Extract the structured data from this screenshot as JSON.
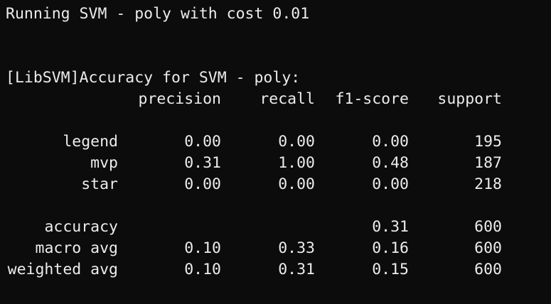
{
  "terminal": {
    "line1": "Running SVM - poly with cost 0.01",
    "line2": "[LibSVM]Accuracy for SVM - poly:",
    "headers": [
      "precision",
      "recall",
      "f1-score",
      "support"
    ],
    "class_rows": [
      {
        "label": "legend",
        "precision": "0.00",
        "recall": "0.00",
        "f1": "0.00",
        "support": "195"
      },
      {
        "label": "mvp",
        "precision": "0.31",
        "recall": "1.00",
        "f1": "0.48",
        "support": "187"
      },
      {
        "label": "star",
        "precision": "0.00",
        "recall": "0.00",
        "f1": "0.00",
        "support": "218"
      }
    ],
    "summary_rows": [
      {
        "label": "accuracy",
        "precision": "",
        "recall": "",
        "f1": "0.31",
        "support": "600"
      },
      {
        "label": "macro avg",
        "precision": "0.10",
        "recall": "0.33",
        "f1": "0.16",
        "support": "600"
      },
      {
        "label": "weighted avg",
        "precision": "0.10",
        "recall": "0.31",
        "f1": "0.15",
        "support": "600"
      }
    ]
  }
}
